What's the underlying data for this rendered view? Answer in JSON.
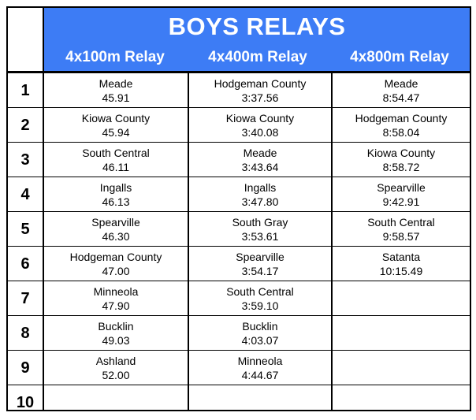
{
  "title": "BOYS RELAYS",
  "events": [
    {
      "name": "4x100m Relay",
      "results": [
        {
          "team": "Meade",
          "time": "45.91"
        },
        {
          "team": "Kiowa County",
          "time": "45.94"
        },
        {
          "team": "South Central",
          "time": "46.11"
        },
        {
          "team": "Ingalls",
          "time": "46.13"
        },
        {
          "team": "Spearville",
          "time": "46.30"
        },
        {
          "team": "Hodgeman County",
          "time": "47.00"
        },
        {
          "team": "Minneola",
          "time": "47.90"
        },
        {
          "team": "Bucklin",
          "time": "49.03"
        },
        {
          "team": "Ashland",
          "time": "52.00"
        },
        {
          "team": "",
          "time": ""
        }
      ]
    },
    {
      "name": "4x400m Relay",
      "results": [
        {
          "team": "Hodgeman County",
          "time": "3:37.56"
        },
        {
          "team": "Kiowa County",
          "time": "3:40.08"
        },
        {
          "team": "Meade",
          "time": "3:43.64"
        },
        {
          "team": "Ingalls",
          "time": "3:47.80"
        },
        {
          "team": "South Gray",
          "time": "3:53.61"
        },
        {
          "team": "Spearville",
          "time": "3:54.17"
        },
        {
          "team": "South Central",
          "time": "3:59.10"
        },
        {
          "team": "Bucklin",
          "time": "4:03.07"
        },
        {
          "team": "Minneola",
          "time": "4:44.67"
        },
        {
          "team": "",
          "time": ""
        }
      ]
    },
    {
      "name": "4x800m Relay",
      "results": [
        {
          "team": "Meade",
          "time": "8:54.47"
        },
        {
          "team": "Hodgeman County",
          "time": "8:58.04"
        },
        {
          "team": "Kiowa County",
          "time": "8:58.72"
        },
        {
          "team": "Spearville",
          "time": "9:42.91"
        },
        {
          "team": "South Central",
          "time": "9:58.57"
        },
        {
          "team": "Satanta",
          "time": "10:15.49"
        },
        {
          "team": "",
          "time": ""
        },
        {
          "team": "",
          "time": ""
        },
        {
          "team": "",
          "time": ""
        },
        {
          "team": "",
          "time": ""
        }
      ]
    }
  ],
  "ranks": [
    "1",
    "2",
    "3",
    "4",
    "5",
    "6",
    "7",
    "8",
    "9",
    "10"
  ]
}
